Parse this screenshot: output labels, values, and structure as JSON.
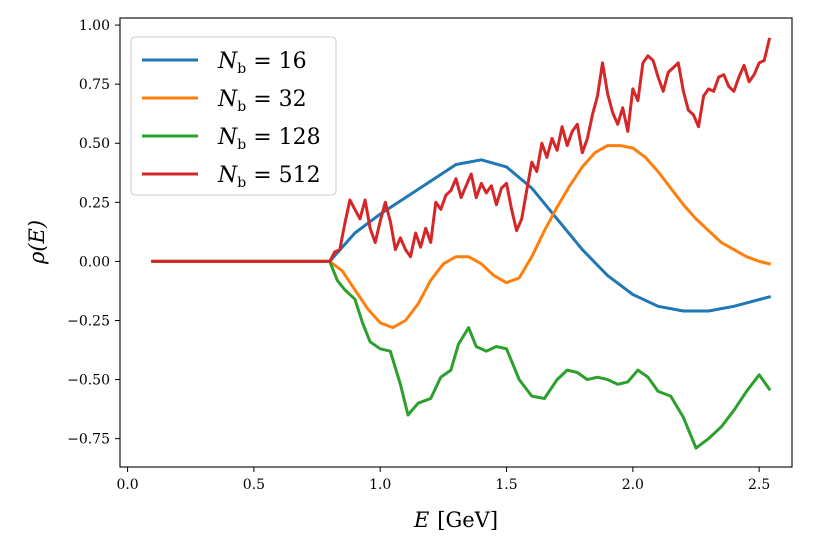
{
  "chart_data": {
    "type": "line",
    "title": "",
    "xlabel_var": "E",
    "xlabel_unit": "[GeV]",
    "ylabel_var": "ρ",
    "ylabel_arg": "(E)",
    "xlim": [
      -0.03,
      2.63
    ],
    "ylim": [
      -0.87,
      1.03
    ],
    "xticks": [
      0.0,
      0.5,
      1.0,
      1.5,
      2.0,
      2.5
    ],
    "xtick_labels": [
      "0.0",
      "0.5",
      "1.0",
      "1.5",
      "2.0",
      "2.5"
    ],
    "yticks": [
      -0.75,
      -0.5,
      -0.25,
      0.0,
      0.25,
      0.5,
      0.75,
      1.0
    ],
    "ytick_labels": [
      "−0.75",
      "−0.50",
      "−0.25",
      "0.00",
      "0.25",
      "0.50",
      "0.75",
      "1.00"
    ],
    "legend_position": "top-left",
    "legend_var": "N",
    "legend_sub": "b",
    "series": [
      {
        "name": "N_b = 16",
        "label_value": "= 16",
        "color": "#1f77b4",
        "x": [
          0.1,
          0.8,
          0.9,
          1.0,
          1.1,
          1.2,
          1.3,
          1.4,
          1.5,
          1.6,
          1.7,
          1.8,
          1.9,
          2.0,
          2.1,
          2.2,
          2.3,
          2.4,
          2.54
        ],
        "y": [
          0.0,
          0.0,
          0.12,
          0.2,
          0.27,
          0.34,
          0.41,
          0.43,
          0.4,
          0.31,
          0.18,
          0.05,
          -0.06,
          -0.14,
          -0.19,
          -0.21,
          -0.21,
          -0.19,
          -0.15
        ]
      },
      {
        "name": "N_b = 32",
        "label_value": "= 32",
        "color": "#ff7f0e",
        "x": [
          0.1,
          0.8,
          0.85,
          0.9,
          0.95,
          1.0,
          1.05,
          1.1,
          1.15,
          1.2,
          1.25,
          1.3,
          1.35,
          1.4,
          1.45,
          1.5,
          1.55,
          1.6,
          1.65,
          1.7,
          1.75,
          1.8,
          1.85,
          1.9,
          1.95,
          2.0,
          2.05,
          2.1,
          2.15,
          2.2,
          2.25,
          2.3,
          2.35,
          2.4,
          2.45,
          2.5,
          2.54
        ],
        "y": [
          0.0,
          0.0,
          -0.04,
          -0.12,
          -0.2,
          -0.26,
          -0.28,
          -0.25,
          -0.18,
          -0.08,
          -0.01,
          0.02,
          0.02,
          -0.01,
          -0.06,
          -0.09,
          -0.07,
          0.02,
          0.13,
          0.23,
          0.32,
          0.4,
          0.46,
          0.49,
          0.49,
          0.48,
          0.44,
          0.38,
          0.31,
          0.24,
          0.18,
          0.13,
          0.08,
          0.05,
          0.02,
          0.0,
          -0.01
        ]
      },
      {
        "name": "N_b = 128",
        "label_value": "= 128",
        "color": "#2ca02c",
        "x": [
          0.1,
          0.8,
          0.83,
          0.86,
          0.9,
          0.93,
          0.96,
          1.0,
          1.04,
          1.08,
          1.11,
          1.15,
          1.2,
          1.24,
          1.28,
          1.31,
          1.35,
          1.38,
          1.42,
          1.46,
          1.5,
          1.55,
          1.6,
          1.65,
          1.7,
          1.74,
          1.78,
          1.82,
          1.86,
          1.9,
          1.94,
          1.98,
          2.02,
          2.06,
          2.1,
          2.15,
          2.2,
          2.25,
          2.3,
          2.35,
          2.4,
          2.45,
          2.5,
          2.54
        ],
        "y": [
          0.0,
          0.0,
          -0.08,
          -0.12,
          -0.16,
          -0.26,
          -0.34,
          -0.37,
          -0.38,
          -0.52,
          -0.65,
          -0.6,
          -0.58,
          -0.49,
          -0.46,
          -0.35,
          -0.28,
          -0.36,
          -0.38,
          -0.36,
          -0.37,
          -0.5,
          -0.57,
          -0.58,
          -0.5,
          -0.46,
          -0.47,
          -0.5,
          -0.49,
          -0.5,
          -0.52,
          -0.51,
          -0.46,
          -0.49,
          -0.55,
          -0.57,
          -0.66,
          -0.79,
          -0.75,
          -0.7,
          -0.63,
          -0.55,
          -0.48,
          -0.54
        ]
      },
      {
        "name": "N_b = 512",
        "label_value": "= 512",
        "color": "#d62728",
        "x": [
          0.1,
          0.8,
          0.82,
          0.84,
          0.86,
          0.88,
          0.9,
          0.92,
          0.94,
          0.96,
          0.98,
          1.0,
          1.02,
          1.04,
          1.06,
          1.08,
          1.1,
          1.12,
          1.14,
          1.16,
          1.18,
          1.2,
          1.22,
          1.24,
          1.26,
          1.28,
          1.3,
          1.32,
          1.34,
          1.36,
          1.38,
          1.4,
          1.42,
          1.44,
          1.46,
          1.48,
          1.5,
          1.52,
          1.54,
          1.56,
          1.58,
          1.6,
          1.62,
          1.64,
          1.66,
          1.68,
          1.7,
          1.72,
          1.74,
          1.76,
          1.78,
          1.8,
          1.82,
          1.84,
          1.86,
          1.88,
          1.9,
          1.92,
          1.94,
          1.96,
          1.98,
          2.0,
          2.02,
          2.04,
          2.06,
          2.08,
          2.1,
          2.12,
          2.14,
          2.16,
          2.18,
          2.2,
          2.22,
          2.24,
          2.26,
          2.28,
          2.3,
          2.32,
          2.34,
          2.36,
          2.38,
          2.4,
          2.42,
          2.44,
          2.46,
          2.48,
          2.5,
          2.52,
          2.54
        ],
        "y": [
          0.0,
          0.0,
          0.04,
          0.05,
          0.16,
          0.26,
          0.22,
          0.18,
          0.26,
          0.14,
          0.08,
          0.17,
          0.25,
          0.17,
          0.05,
          0.1,
          0.05,
          0.02,
          0.12,
          0.06,
          0.14,
          0.08,
          0.25,
          0.22,
          0.28,
          0.3,
          0.35,
          0.27,
          0.32,
          0.37,
          0.27,
          0.33,
          0.29,
          0.32,
          0.24,
          0.31,
          0.33,
          0.22,
          0.13,
          0.18,
          0.3,
          0.42,
          0.38,
          0.5,
          0.44,
          0.52,
          0.47,
          0.57,
          0.49,
          0.55,
          0.58,
          0.46,
          0.52,
          0.62,
          0.7,
          0.84,
          0.71,
          0.63,
          0.58,
          0.65,
          0.55,
          0.73,
          0.68,
          0.84,
          0.87,
          0.85,
          0.78,
          0.72,
          0.8,
          0.82,
          0.84,
          0.72,
          0.64,
          0.62,
          0.57,
          0.7,
          0.73,
          0.72,
          0.78,
          0.79,
          0.74,
          0.72,
          0.78,
          0.83,
          0.76,
          0.79,
          0.84,
          0.85,
          0.94
        ]
      }
    ]
  }
}
